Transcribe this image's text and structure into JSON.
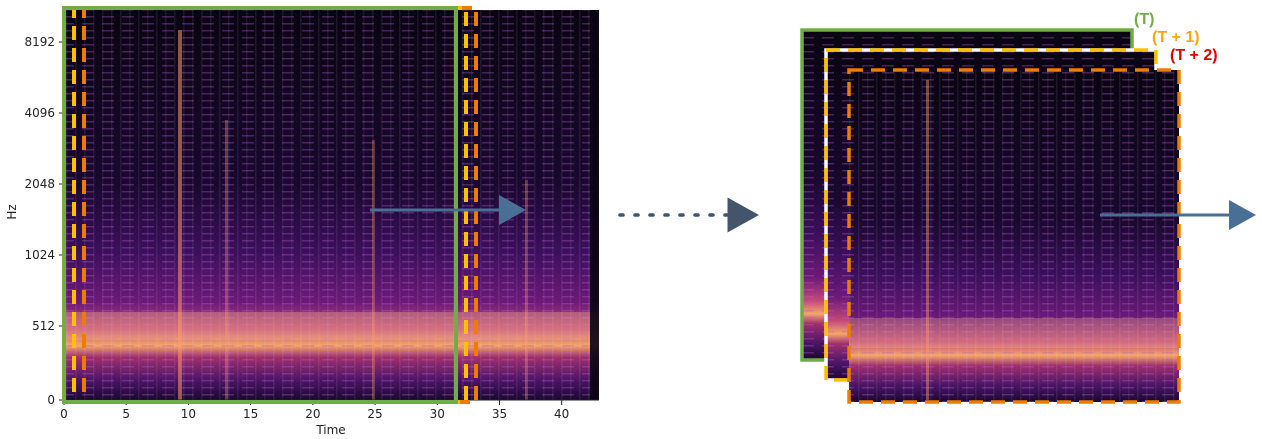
{
  "spectrogram": {
    "y_axis_label": "Hz",
    "x_axis_label": "Time",
    "y_ticks": [
      "8192",
      "4096",
      "2048",
      "1024",
      "512",
      "0"
    ],
    "x_ticks": [
      "0",
      "5",
      "10",
      "15",
      "20",
      "25",
      "30",
      "35",
      "40"
    ],
    "x_range": [
      0,
      43
    ]
  },
  "frame_labels": {
    "t": "(T)",
    "t_plus_1": "(T + 1)",
    "t_plus_2": "(T + 2)"
  },
  "colors": {
    "window_t": "#70ad47",
    "window_t_plus_1": "#ffc000",
    "window_t_plus_2": "#ed7d00",
    "label_t": "#70ad47",
    "label_t_plus_1": "#ffa500",
    "label_t_plus_2": "#e00000",
    "arrow": "#4a6f94",
    "dots": "#44546a"
  }
}
